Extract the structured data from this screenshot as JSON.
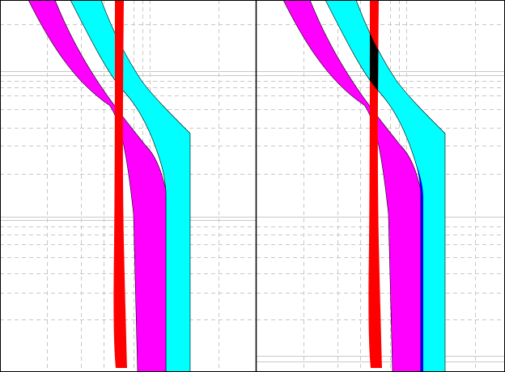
{
  "panels": [
    {
      "bands": [
        {
          "color": "#00ffff"
        },
        {
          "color": "#ff00ff"
        },
        {
          "color": "#ff0000"
        }
      ]
    },
    {
      "bands": [
        {
          "color": "#00ffff"
        },
        {
          "color": "#ff00ff"
        },
        {
          "color": "#ff0000"
        }
      ],
      "overlaps": [
        {
          "color": "#000000"
        },
        {
          "color": "#0000ff"
        }
      ]
    }
  ]
}
